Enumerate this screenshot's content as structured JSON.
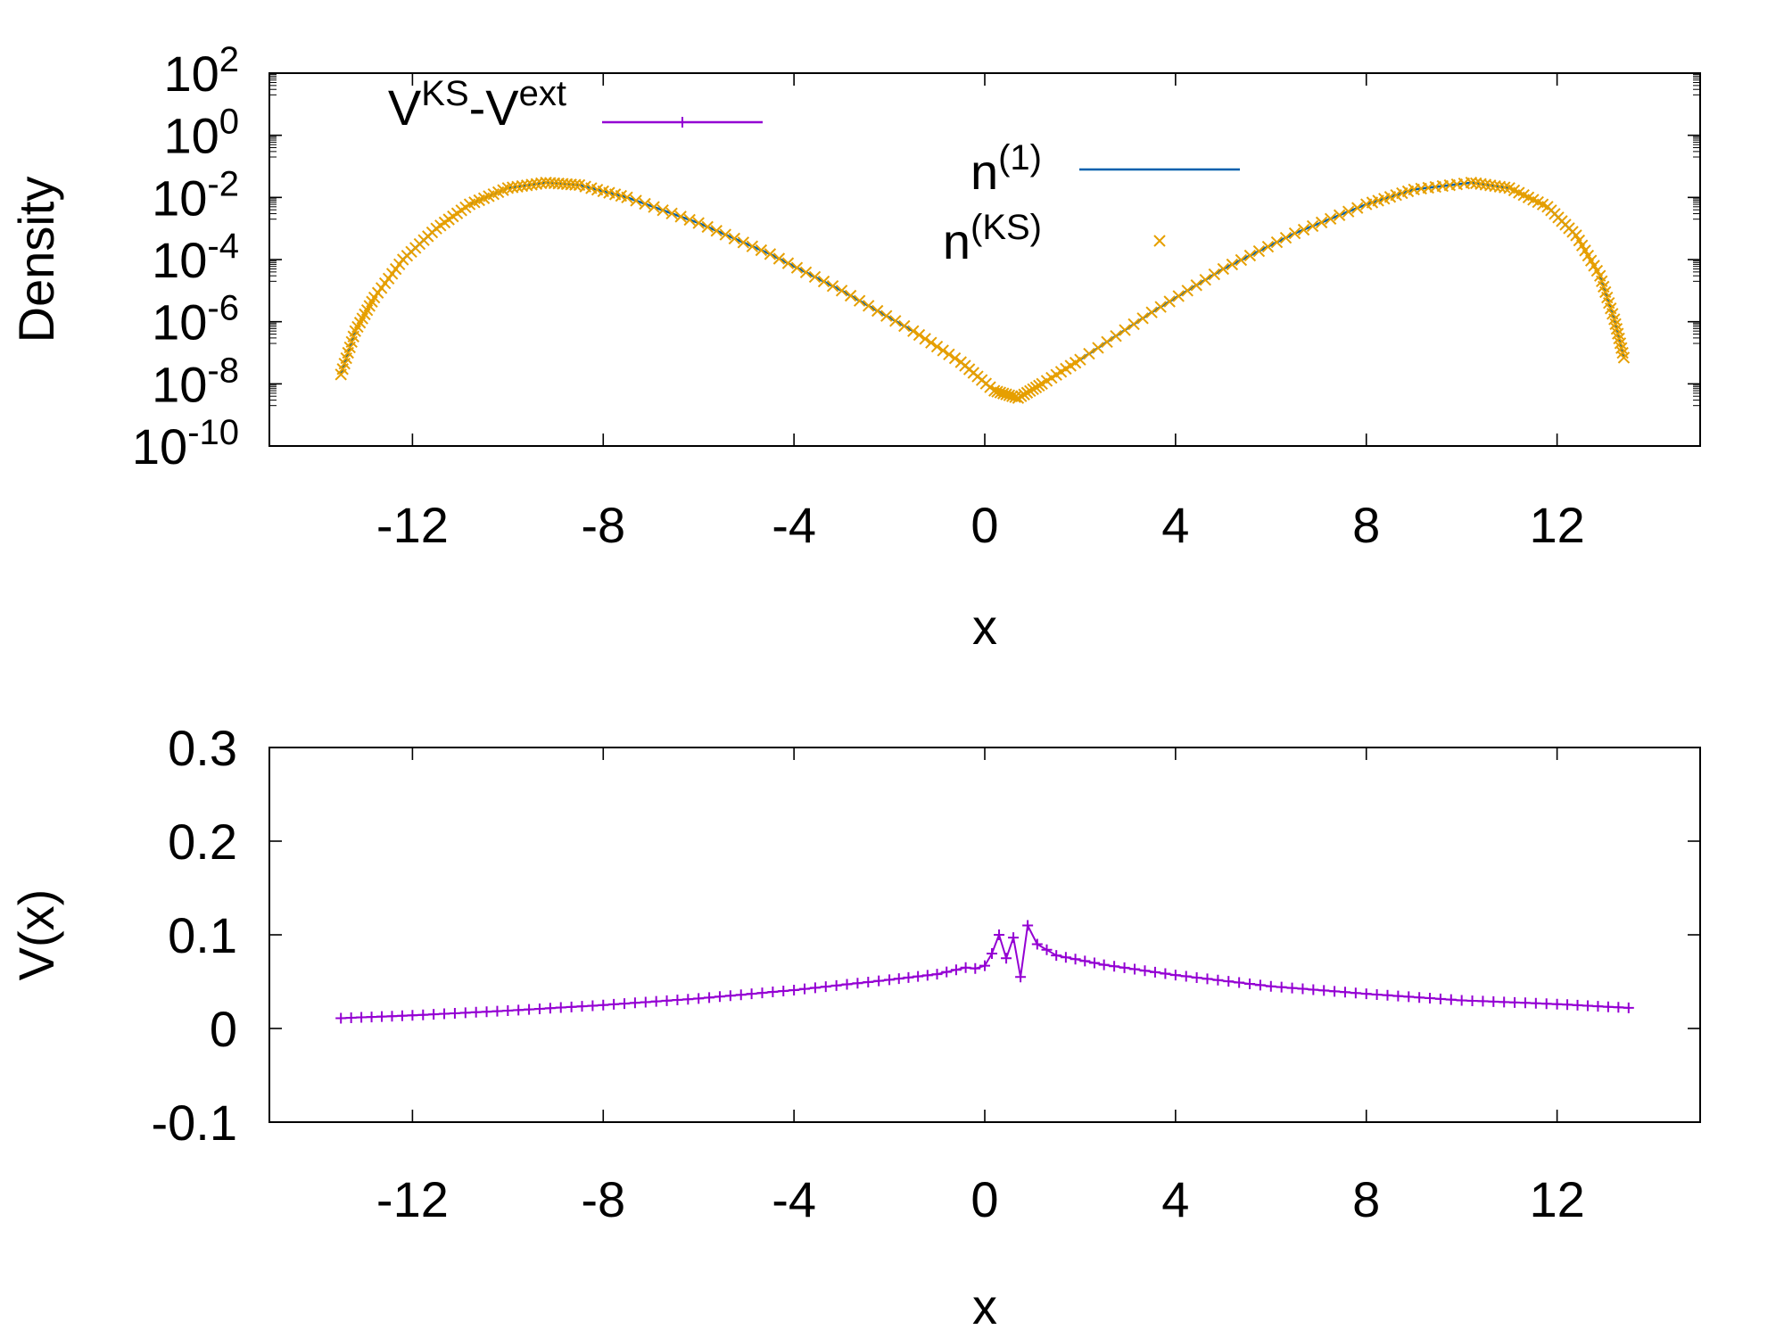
{
  "chart_data": [
    {
      "type": "line",
      "panel": "top",
      "scale": {
        "y": "log"
      },
      "xlabel": "x",
      "ylabel": "Density",
      "xlim": [
        -15,
        15
      ],
      "ylim": [
        1e-10,
        100
      ],
      "xticks": [
        "-12",
        "-8",
        "-4",
        "0",
        "4",
        "8",
        "12"
      ],
      "xtick_values": [
        -12,
        -8,
        -4,
        0,
        4,
        8,
        12
      ],
      "yticks": [
        {
          "base": "10",
          "exp": "2",
          "value": 100
        },
        {
          "base": "10",
          "exp": "0",
          "value": 1
        },
        {
          "base": "10",
          "exp": "-2",
          "value": 0.01
        },
        {
          "base": "10",
          "exp": "-4",
          "value": 0.0001
        },
        {
          "base": "10",
          "exp": "-6",
          "value": 1e-06
        },
        {
          "base": "10",
          "exp": "-8",
          "value": 1e-08
        },
        {
          "base": "10",
          "exp": "-10",
          "value": 1e-10
        }
      ],
      "grid": false,
      "legend_placement": "inside",
      "series": [
        {
          "legend_base": "n",
          "legend_sup": "(1)",
          "style": "line",
          "color": "#0060ad",
          "x": [
            -13.5,
            -13.2,
            -12.8,
            -12.2,
            -11.5,
            -10.8,
            -10.0,
            -9.2,
            -8.5,
            -7.5,
            -6.0,
            -4.5,
            -3.0,
            -1.5,
            -0.5,
            0.2,
            0.7,
            1.2,
            2.0,
            3.5,
            5.0,
            6.5,
            8.0,
            9.0,
            10.2,
            11.0,
            11.8,
            12.4,
            12.9,
            13.2,
            13.4
          ],
          "y": [
            2e-08,
            5e-07,
            6e-06,
            0.0001,
            0.001,
            0.006,
            0.02,
            0.03,
            0.025,
            0.01,
            0.0015,
            0.00015,
            1e-05,
            5e-07,
            5e-08,
            6e-09,
            3.5e-09,
            1e-08,
            6e-08,
            2e-06,
            5e-05,
            0.0007,
            0.006,
            0.018,
            0.03,
            0.02,
            0.005,
            0.0006,
            3e-05,
            1.2e-06,
            7e-08
          ]
        },
        {
          "legend_base": "n",
          "legend_sup": "(KS)",
          "style": "cross",
          "color": "#e69f00",
          "x": [
            -13.5,
            -13.2,
            -12.8,
            -12.2,
            -11.5,
            -10.8,
            -10.0,
            -9.2,
            -8.5,
            -7.5,
            -6.0,
            -4.5,
            -3.0,
            -1.5,
            -0.5,
            0.2,
            0.7,
            1.2,
            2.0,
            3.5,
            5.0,
            6.5,
            8.0,
            9.0,
            10.2,
            11.0,
            11.8,
            12.4,
            12.9,
            13.2,
            13.4
          ],
          "y": [
            2e-08,
            5e-07,
            6e-06,
            0.0001,
            0.001,
            0.006,
            0.02,
            0.03,
            0.025,
            0.01,
            0.0015,
            0.00015,
            1e-05,
            5e-07,
            5e-08,
            6e-09,
            3.5e-09,
            1e-08,
            6e-08,
            2e-06,
            5e-05,
            0.0007,
            0.006,
            0.018,
            0.03,
            0.02,
            0.005,
            0.0006,
            3e-05,
            1.2e-06,
            7e-08
          ]
        }
      ],
      "extra_legend": {
        "text_base": "V",
        "sup1": "KS",
        "mid": "-V",
        "sup2": "ext",
        "style": "line+plus",
        "color": "#9400d3"
      }
    },
    {
      "type": "line",
      "panel": "bottom",
      "xlabel": "x",
      "ylabel": "V(x)",
      "xlim": [
        -15,
        15
      ],
      "ylim": [
        -0.1,
        0.3
      ],
      "xticks": [
        "-12",
        "-8",
        "-4",
        "0",
        "4",
        "8",
        "12"
      ],
      "xtick_values": [
        -12,
        -8,
        -4,
        0,
        4,
        8,
        12
      ],
      "yticks": [
        "0.3",
        "0.2",
        "0.1",
        "0",
        "-0.1"
      ],
      "ytick_values": [
        0.3,
        0.2,
        0.1,
        0,
        -0.1
      ],
      "grid": false,
      "series": [
        {
          "style": "line+plus",
          "color": "#9400d3",
          "x": [
            -13.5,
            -12.0,
            -10.0,
            -8.0,
            -6.0,
            -4.0,
            -2.0,
            -1.0,
            -0.4,
            -0.2,
            0.0,
            0.15,
            0.3,
            0.45,
            0.6,
            0.75,
            0.9,
            1.1,
            1.5,
            2.5,
            4.0,
            6.0,
            8.0,
            10.0,
            12.0,
            13.5
          ],
          "y": [
            0.011,
            0.014,
            0.019,
            0.025,
            0.032,
            0.041,
            0.052,
            0.058,
            0.065,
            0.064,
            0.067,
            0.08,
            0.1,
            0.075,
            0.097,
            0.055,
            0.11,
            0.09,
            0.078,
            0.068,
            0.057,
            0.045,
            0.037,
            0.03,
            0.026,
            0.022
          ]
        }
      ]
    }
  ]
}
